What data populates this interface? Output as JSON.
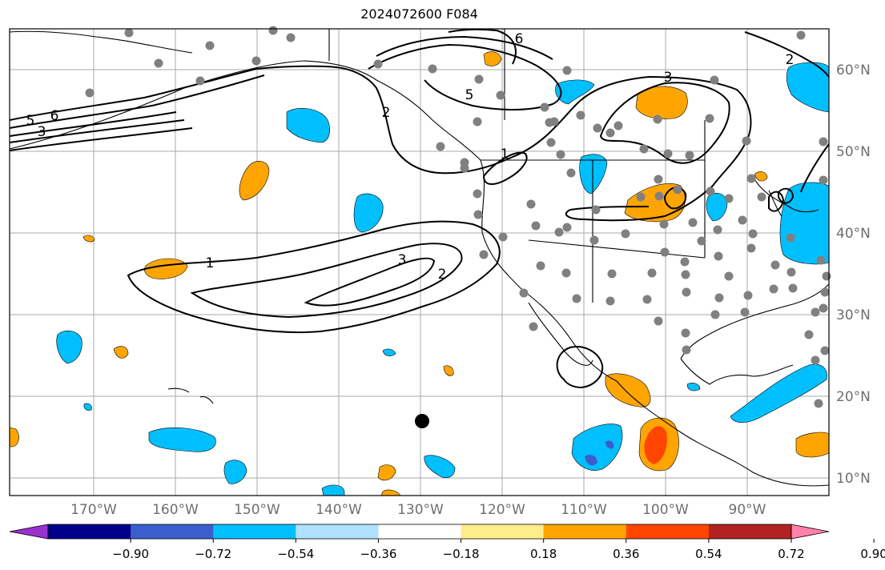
{
  "title": "2024072600 F084",
  "map": {
    "lon_labels": [
      "170°W",
      "160°W",
      "150°W",
      "140°W",
      "130°W",
      "120°W",
      "110°W",
      "100°W",
      "90°W"
    ],
    "lat_labels": [
      "60°N",
      "50°N",
      "40°N",
      "30°N",
      "20°N",
      "10°N"
    ],
    "contour_labels": [
      "1",
      "2",
      "3",
      "2",
      "3",
      "5",
      "6",
      "5",
      "6",
      "3",
      "2",
      "1"
    ],
    "colors": {
      "grid": "#aaaaaa",
      "land": "#ffffff",
      "coast": "#000000",
      "station": "#808080",
      "marker": "#000000"
    }
  },
  "colorbar": {
    "ticks": [
      "−0.90",
      "−0.72",
      "−0.54",
      "−0.36",
      "−0.18",
      "0.18",
      "0.36",
      "0.54",
      "0.72",
      "0.90"
    ],
    "colors": [
      "#9932cc",
      "#00008b",
      "#3a5fcd",
      "#00bfff",
      "#b0e2ff",
      "#ffffff",
      "#ffec8b",
      "#ffa500",
      "#ff4500",
      "#b22222",
      "#ff82ab"
    ]
  }
}
